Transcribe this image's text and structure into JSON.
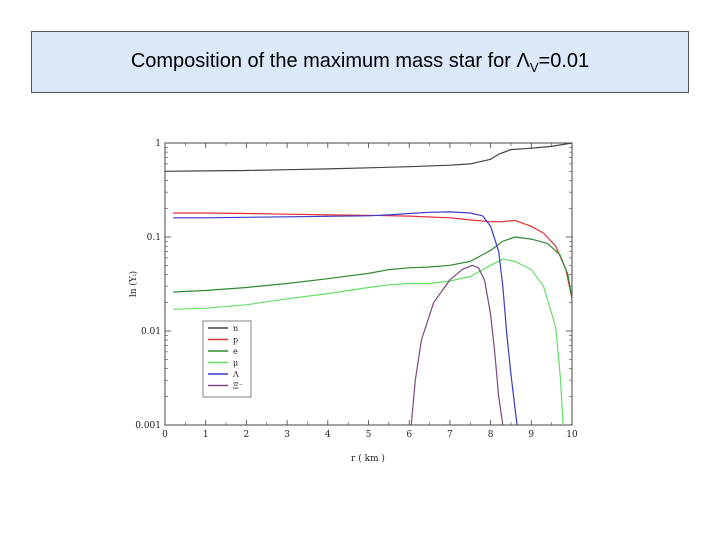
{
  "slide": {
    "title_prefix": "Composition of the maximum mass star for ",
    "title_symbol": "Λ",
    "title_subscript": "V",
    "title_suffix": "=0.01"
  },
  "chart_data": {
    "type": "line",
    "xlabel": "r ( km )",
    "ylabel": "ln (Yᵢ)",
    "xlim": [
      0,
      10
    ],
    "ylim": [
      0.001,
      1
    ],
    "yscale": "log",
    "xticks": [
      0,
      1,
      2,
      3,
      4,
      5,
      6,
      7,
      8,
      9,
      10
    ],
    "yticks": [
      {
        "value": 0.001,
        "label": "0.001"
      },
      {
        "value": 0.01,
        "label": "0.01"
      },
      {
        "value": 0.1,
        "label": "0.1"
      },
      {
        "value": 1,
        "label": "1"
      }
    ],
    "grid": false,
    "legend_position": "lower-left",
    "series": [
      {
        "name": "n",
        "color": "#444444",
        "x": [
          0,
          1,
          2,
          3,
          4,
          5,
          6,
          7,
          7.5,
          8,
          8.2,
          8.5,
          9,
          9.5,
          10
        ],
        "y": [
          0.5,
          0.505,
          0.51,
          0.52,
          0.53,
          0.545,
          0.56,
          0.58,
          0.6,
          0.67,
          0.76,
          0.85,
          0.88,
          0.92,
          1.0
        ]
      },
      {
        "name": "p",
        "color": "#e03030",
        "x": [
          0.2,
          1,
          2,
          3,
          4,
          5,
          6,
          7,
          7.5,
          8,
          8.3,
          8.6,
          9,
          9.3,
          9.6,
          9.85,
          10
        ],
        "y": [
          0.18,
          0.18,
          0.178,
          0.175,
          0.172,
          0.17,
          0.167,
          0.16,
          0.152,
          0.145,
          0.146,
          0.15,
          0.13,
          0.11,
          0.08,
          0.045,
          0.022
        ]
      },
      {
        "name": "e",
        "color": "#2f8a2f",
        "x": [
          0.2,
          1,
          2,
          3,
          4,
          5,
          5.5,
          6,
          6.5,
          7,
          7.5,
          8,
          8.3,
          8.6,
          9,
          9.4,
          9.7,
          9.9,
          10
        ],
        "y": [
          0.026,
          0.027,
          0.029,
          0.032,
          0.036,
          0.041,
          0.045,
          0.047,
          0.048,
          0.05,
          0.055,
          0.072,
          0.09,
          0.1,
          0.095,
          0.085,
          0.065,
          0.04,
          0.022
        ]
      },
      {
        "name": "μ",
        "color": "#66dd66",
        "x": [
          0.2,
          1,
          2,
          3,
          4,
          5,
          5.5,
          6,
          6.5,
          7,
          7.5,
          8,
          8.3,
          8.6,
          9,
          9.3,
          9.6,
          9.72,
          9.78
        ],
        "y": [
          0.017,
          0.0175,
          0.019,
          0.022,
          0.025,
          0.029,
          0.031,
          0.032,
          0.032,
          0.034,
          0.038,
          0.05,
          0.058,
          0.055,
          0.045,
          0.03,
          0.011,
          0.003,
          0.001
        ]
      },
      {
        "name": "Λ",
        "color": "#3a3ad0",
        "x": [
          0.2,
          1,
          2,
          3,
          4,
          5,
          5.5,
          6,
          6.5,
          7,
          7.5,
          7.8,
          8,
          8.2,
          8.3,
          8.4,
          8.5,
          8.6,
          8.65
        ],
        "y": [
          0.16,
          0.16,
          0.162,
          0.164,
          0.166,
          0.168,
          0.172,
          0.178,
          0.183,
          0.185,
          0.18,
          0.168,
          0.13,
          0.07,
          0.03,
          0.009,
          0.0035,
          0.0015,
          0.001
        ]
      },
      {
        "name": "Ξ⁻",
        "color": "#7a4a7a",
        "x": [
          6.05,
          6.15,
          6.3,
          6.6,
          7,
          7.3,
          7.55,
          7.7,
          7.85,
          8,
          8.1,
          8.2,
          8.3
        ],
        "y": [
          0.001,
          0.003,
          0.008,
          0.02,
          0.035,
          0.045,
          0.05,
          0.047,
          0.035,
          0.015,
          0.006,
          0.002,
          0.001
        ]
      }
    ]
  }
}
